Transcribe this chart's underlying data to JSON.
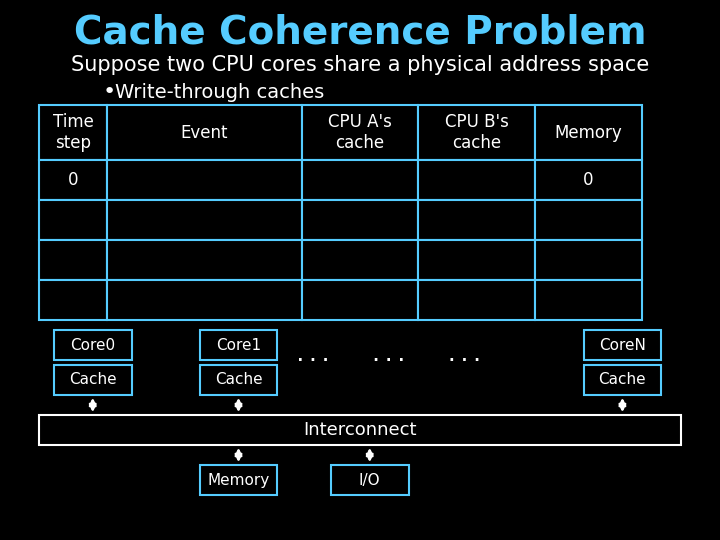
{
  "title": "Cache Coherence Problem",
  "subtitle": "Suppose two CPU cores share a physical address space",
  "bullet": "Write-through caches",
  "bg_color": "#000000",
  "title_color": "#55ccff",
  "text_color": "#ffffff",
  "box_edge_color": "#55ccff",
  "table_headers": [
    "Time\nstep",
    "Event",
    "CPU A's\ncache",
    "CPU B's\ncache",
    "Memory"
  ],
  "table_row0": [
    "0",
    "",
    "",
    "",
    "0"
  ],
  "table_empty_rows": 3,
  "core_labels": [
    "Core0",
    "Core1",
    "CoreN"
  ],
  "cache_labels": [
    "Cache",
    "Cache",
    "Cache"
  ],
  "dots": "...   ...   ...",
  "interconnect_label": "Interconnect",
  "memory_label": "Memory",
  "io_label": "I/O"
}
